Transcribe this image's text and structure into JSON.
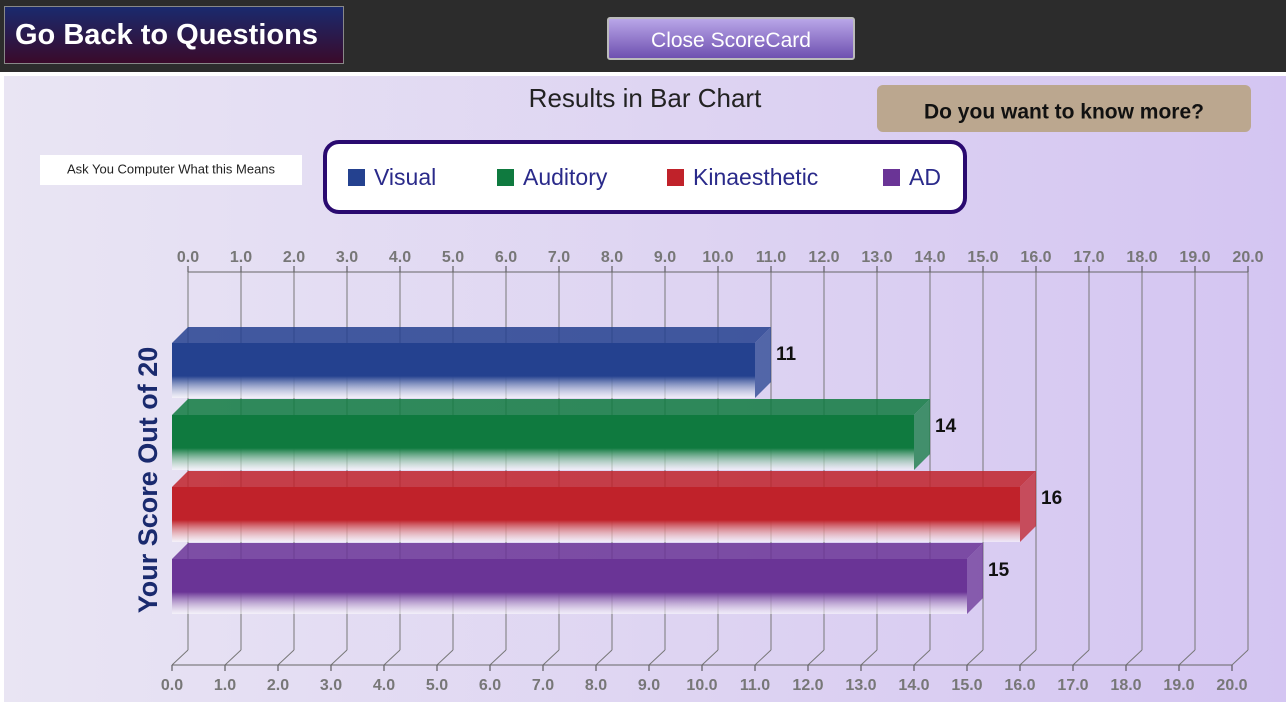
{
  "header": {
    "back_button": "Go Back to Questions",
    "close_button": "Close ScoreCard"
  },
  "side_button": "Ask You Computer What this Means",
  "more_button": "Do you want to know more?",
  "chart_data": {
    "type": "bar",
    "orientation": "horizontal",
    "title": "Results in Bar Chart",
    "y_label": "Your Score Out of 20",
    "series": [
      {
        "name": "Visual",
        "color": "#24418f",
        "values": [
          11
        ]
      },
      {
        "name": "Auditory",
        "color": "#0f7a3f",
        "values": [
          14
        ]
      },
      {
        "name": "Kinaesthetic",
        "color": "#c0222a",
        "values": [
          16
        ]
      },
      {
        "name": "AD",
        "color": "#6a3496",
        "values": [
          15
        ]
      }
    ],
    "xlim": [
      0,
      20
    ],
    "xticks": [
      {
        "value": 0,
        "label": "0.0"
      },
      {
        "value": 1,
        "label": "1.0"
      },
      {
        "value": 2,
        "label": "2.0"
      },
      {
        "value": 3,
        "label": "3.0"
      },
      {
        "value": 4,
        "label": "4.0"
      },
      {
        "value": 5,
        "label": "5.0"
      },
      {
        "value": 6,
        "label": "6.0"
      },
      {
        "value": 7,
        "label": "7.0"
      },
      {
        "value": 8,
        "label": "8.0"
      },
      {
        "value": 9,
        "label": "9.0"
      },
      {
        "value": 10,
        "label": "10.0"
      },
      {
        "value": 11,
        "label": "11.0"
      },
      {
        "value": 12,
        "label": "12.0"
      },
      {
        "value": 13,
        "label": "13.0"
      },
      {
        "value": 14,
        "label": "14.0"
      },
      {
        "value": 15,
        "label": "15.0"
      },
      {
        "value": 16,
        "label": "16.0"
      },
      {
        "value": 17,
        "label": "17.0"
      },
      {
        "value": 18,
        "label": "18.0"
      },
      {
        "value": 19,
        "label": "19.0"
      },
      {
        "value": 20,
        "label": "20.0"
      }
    ],
    "grid": true,
    "legend": "top"
  }
}
